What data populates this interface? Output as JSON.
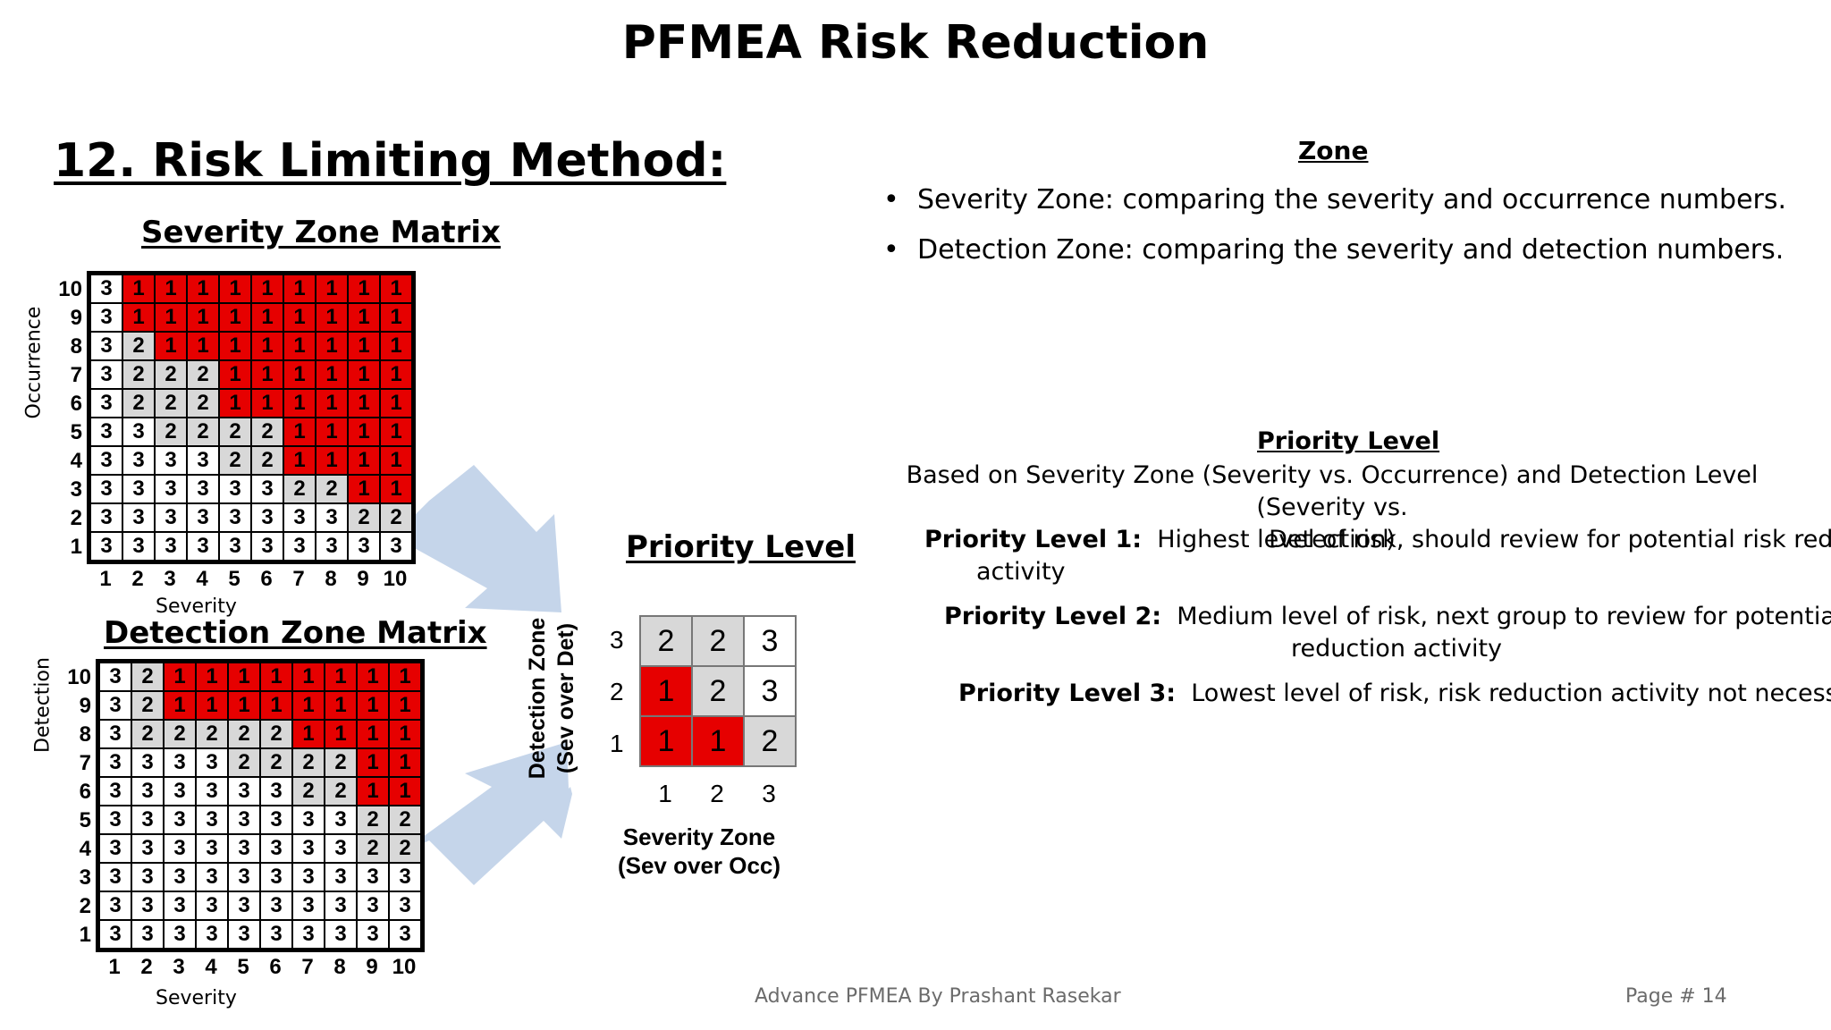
{
  "title": "PFMEA Risk Reduction",
  "section_title": "12. Risk Limiting Method:",
  "severity_matrix": {
    "title": "Severity Zone Matrix",
    "y_axis_label": "Occurrence",
    "x_axis_label": "Severity",
    "x_ticks": [
      "1",
      "2",
      "3",
      "4",
      "5",
      "6",
      "7",
      "8",
      "9",
      "10"
    ],
    "y_ticks": [
      "10",
      "9",
      "8",
      "7",
      "6",
      "5",
      "4",
      "3",
      "2",
      "1"
    ],
    "rows": [
      [
        3,
        1,
        1,
        1,
        1,
        1,
        1,
        1,
        1,
        1
      ],
      [
        3,
        1,
        1,
        1,
        1,
        1,
        1,
        1,
        1,
        1
      ],
      [
        3,
        2,
        1,
        1,
        1,
        1,
        1,
        1,
        1,
        1
      ],
      [
        3,
        2,
        2,
        2,
        1,
        1,
        1,
        1,
        1,
        1
      ],
      [
        3,
        2,
        2,
        2,
        1,
        1,
        1,
        1,
        1,
        1
      ],
      [
        3,
        3,
        2,
        2,
        2,
        2,
        1,
        1,
        1,
        1
      ],
      [
        3,
        3,
        3,
        3,
        2,
        2,
        1,
        1,
        1,
        1
      ],
      [
        3,
        3,
        3,
        3,
        3,
        3,
        2,
        2,
        1,
        1
      ],
      [
        3,
        3,
        3,
        3,
        3,
        3,
        3,
        3,
        2,
        2
      ],
      [
        3,
        3,
        3,
        3,
        3,
        3,
        3,
        3,
        3,
        3
      ]
    ]
  },
  "detection_matrix": {
    "title": "Detection Zone Matrix",
    "y_axis_label": "Detection",
    "x_axis_label": "Severity",
    "x_ticks": [
      "1",
      "2",
      "3",
      "4",
      "5",
      "6",
      "7",
      "8",
      "9",
      "10"
    ],
    "y_ticks": [
      "10",
      "9",
      "8",
      "7",
      "6",
      "5",
      "4",
      "3",
      "2",
      "1"
    ],
    "rows": [
      [
        3,
        2,
        1,
        1,
        1,
        1,
        1,
        1,
        1,
        1
      ],
      [
        3,
        2,
        1,
        1,
        1,
        1,
        1,
        1,
        1,
        1
      ],
      [
        3,
        2,
        2,
        2,
        2,
        2,
        1,
        1,
        1,
        1
      ],
      [
        3,
        3,
        3,
        3,
        2,
        2,
        2,
        2,
        1,
        1
      ],
      [
        3,
        3,
        3,
        3,
        3,
        3,
        2,
        2,
        1,
        1
      ],
      [
        3,
        3,
        3,
        3,
        3,
        3,
        3,
        3,
        2,
        2
      ],
      [
        3,
        3,
        3,
        3,
        3,
        3,
        3,
        3,
        2,
        2
      ],
      [
        3,
        3,
        3,
        3,
        3,
        3,
        3,
        3,
        3,
        3
      ],
      [
        3,
        3,
        3,
        3,
        3,
        3,
        3,
        3,
        3,
        3
      ],
      [
        3,
        3,
        3,
        3,
        3,
        3,
        3,
        3,
        3,
        3
      ]
    ]
  },
  "priority_matrix": {
    "title": "Priority Level",
    "y_axis_label_line1": "Detection Zone",
    "y_axis_label_line2": "(Sev over Det)",
    "x_axis_label_line1": "Severity Zone",
    "x_axis_label_line2": "(Sev over Occ)",
    "x_ticks": [
      "1",
      "2",
      "3"
    ],
    "y_ticks": [
      "3",
      "2",
      "1"
    ],
    "rows": [
      [
        2,
        2,
        3
      ],
      [
        1,
        2,
        3
      ],
      [
        1,
        1,
        2
      ]
    ]
  },
  "zone": {
    "heading": "Zone",
    "bullets": [
      "Severity Zone: comparing the severity and occurrence numbers.",
      "Detection Zone: comparing the severity and detection numbers."
    ]
  },
  "priority_text": {
    "heading": "Priority Level",
    "intro_line1": "Based on Severity Zone (Severity vs. Occurrence) and Detection Level (Severity vs.",
    "intro_line2": "Detection)",
    "level1_label": "Priority Level 1:",
    "level1_text_line1": "Highest level of risk,  should review for potential risk reduction",
    "level1_text_line2": "activity",
    "level2_label": "Priority Level 2:",
    "level2_text_line1": "Medium level of risk, next group to review for potential risk",
    "level2_text_line2": "reduction activity",
    "level3_label": "Priority Level 3:",
    "level3_text": "Lowest level of risk, risk reduction activity not necessary."
  },
  "footer": {
    "center": "Advance PFMEA By Prashant Rasekar",
    "page": "Page # 14"
  },
  "colors": {
    "zone1": "#e60000",
    "zone2": "#d8d8d8",
    "zone3": "#ffffff",
    "arrow": "#c5d5ea"
  }
}
